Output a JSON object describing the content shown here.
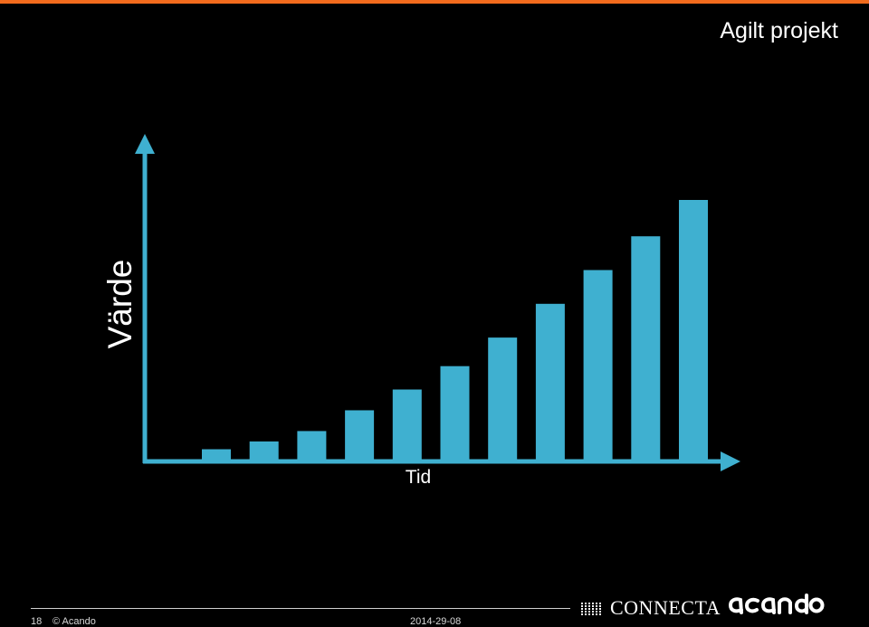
{
  "header": {
    "title": "Agilt projekt",
    "accent_color": "#f26b1d"
  },
  "chart_data": {
    "type": "bar",
    "ylabel": "Värde",
    "xlabel": "Tid",
    "values": [
      0.04,
      0.07,
      0.11,
      0.19,
      0.27,
      0.36,
      0.47,
      0.6,
      0.73,
      0.86,
      1.0
    ],
    "bar_color": "#3fb0d0",
    "axis_color": "#3fb0d0",
    "grid": false
  },
  "footer": {
    "page_number": "18",
    "copyright": "© Acando",
    "date": "2014-29-08",
    "partner_logo_text": "CONNECTA",
    "brand_logo_text": "acando"
  }
}
